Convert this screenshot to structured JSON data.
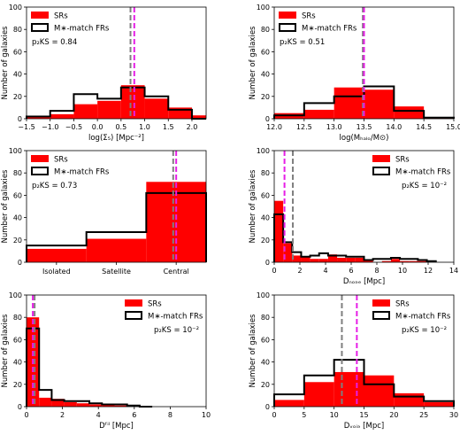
{
  "figure": {
    "legend_sr": "SRs",
    "legend_fr": "M∗-match FRs"
  },
  "colors": {
    "sr_fill": "#ff0000",
    "fr_line": "#000000",
    "median_sr": "#e61ee6",
    "median_fr": "#7f7f7f"
  },
  "chart_data": [
    {
      "type": "bar",
      "title": "",
      "xlabel": "log(Σ₅) [Mpc⁻²]",
      "ylabel": "Number of galaxies",
      "xlim": [
        -1.5,
        2.3
      ],
      "ylim": [
        0,
        100
      ],
      "xticks": [
        -1.5,
        -1.0,
        -0.5,
        0.0,
        0.5,
        1.0,
        1.5,
        2.0
      ],
      "xtick_labels": [
        "−1.5",
        "−1.0",
        "−0.5",
        "0.0",
        "0.5",
        "1.0",
        "1.5",
        "2.0"
      ],
      "yticks": [
        0,
        20,
        40,
        60,
        80,
        100
      ],
      "bin_edges": [
        -1.5,
        -1.0,
        -0.5,
        0.0,
        0.5,
        1.0,
        1.5,
        2.0,
        2.3
      ],
      "series": [
        {
          "name": "SRs",
          "style": "filled",
          "values": [
            2,
            4,
            13,
            16,
            30,
            18,
            10,
            3
          ]
        },
        {
          "name": "M∗-match FRs",
          "style": "step",
          "values": [
            2,
            7,
            22,
            18,
            28,
            20,
            8,
            0
          ]
        }
      ],
      "medians": {
        "sr": 0.78,
        "fr": 0.7
      },
      "annotation": "p₂KS = 0.84",
      "legend": "top-left",
      "annotation_position": "left"
    },
    {
      "type": "bar",
      "title": "",
      "xlabel": "log(Mₕₐₗₒ/M⊙)",
      "ylabel": "Number of galaxies",
      "xlim": [
        12.0,
        15.0
      ],
      "ylim": [
        0,
        100
      ],
      "xticks": [
        12.0,
        12.5,
        13.0,
        13.5,
        14.0,
        14.5,
        15.0
      ],
      "xtick_labels": [
        "12.0",
        "12.5",
        "13.0",
        "13.5",
        "14.0",
        "14.5",
        "15.0"
      ],
      "yticks": [
        0,
        20,
        40,
        60,
        80,
        100
      ],
      "bin_edges": [
        12.0,
        12.5,
        13.0,
        13.5,
        14.0,
        14.5,
        15.0
      ],
      "series": [
        {
          "name": "SRs",
          "style": "filled",
          "values": [
            5,
            8,
            28,
            26,
            11,
            1
          ]
        },
        {
          "name": "M∗-match FRs",
          "style": "step",
          "values": [
            3,
            14,
            20,
            29,
            7,
            1
          ]
        }
      ],
      "medians": {
        "sr": 13.5,
        "fr": 13.48
      },
      "annotation": "p₂KS = 0.51",
      "legend": "top-left",
      "annotation_position": "left"
    },
    {
      "type": "bar",
      "title": "",
      "xlabel": "",
      "ylabel": "Number of galaxies",
      "categories": [
        "Isolated",
        "Satellite",
        "Central"
      ],
      "ylim": [
        0,
        100
      ],
      "yticks": [
        0,
        20,
        40,
        60,
        80,
        100
      ],
      "series": [
        {
          "name": "SRs",
          "style": "filled",
          "values": [
            12,
            21,
            72
          ]
        },
        {
          "name": "M∗-match FRs",
          "style": "step",
          "values": [
            15,
            27,
            62
          ]
        }
      ],
      "medians": {
        "sr": 2.0,
        "fr": 1.95
      },
      "annotation": "p₂KS = 0.73",
      "legend": "top-left",
      "annotation_position": "left"
    },
    {
      "type": "bar",
      "title": "",
      "xlabel": "Dₙₒₔₑ [Mpc]",
      "ylabel": "Number of galaxies",
      "xlim": [
        0,
        14
      ],
      "ylim": [
        0,
        100
      ],
      "xticks": [
        0,
        2,
        4,
        6,
        8,
        10,
        12,
        14
      ],
      "xtick_labels": [
        "0",
        "2",
        "4",
        "6",
        "8",
        "10",
        "12",
        "14"
      ],
      "yticks": [
        0,
        20,
        40,
        60,
        80,
        100
      ],
      "bin_edges": [
        0,
        0.7,
        1.4,
        2.1,
        2.8,
        3.5,
        4.2,
        4.9,
        5.6,
        6.3,
        7.0,
        7.7,
        8.4,
        9.1,
        9.8,
        10.5,
        11.2,
        11.9,
        12.6
      ],
      "series": [
        {
          "name": "SRs",
          "style": "filled",
          "values": [
            55,
            17,
            6,
            5,
            3,
            3,
            7,
            4,
            4,
            4,
            2,
            0,
            1,
            3,
            1,
            1,
            1,
            0
          ]
        },
        {
          "name": "M∗-match FRs",
          "style": "step",
          "values": [
            43,
            18,
            9,
            5,
            6,
            8,
            6,
            6,
            5,
            5,
            2,
            3,
            3,
            4,
            3,
            3,
            2,
            1
          ]
        }
      ],
      "medians": {
        "sr": 0.8,
        "fr": 1.45
      },
      "annotation": "p₂KS = 10⁻²",
      "legend": "top-right",
      "annotation_position": "right"
    },
    {
      "type": "bar",
      "title": "",
      "xlabel": "Dᶠⁱˡ [Mpc]",
      "ylabel": "Number of galaxies",
      "xlim": [
        0,
        10
      ],
      "ylim": [
        0,
        100
      ],
      "xticks": [
        0,
        2,
        4,
        6,
        8,
        10
      ],
      "xtick_labels": [
        "0",
        "2",
        "4",
        "6",
        "8",
        "10"
      ],
      "yticks": [
        0,
        20,
        40,
        60,
        80,
        100
      ],
      "bin_edges": [
        0,
        0.7,
        1.4,
        2.1,
        2.8,
        3.5,
        4.2,
        4.9,
        5.6,
        6.3,
        7.0
      ],
      "series": [
        {
          "name": "SRs",
          "style": "filled",
          "values": [
            80,
            8,
            7,
            4,
            3,
            2,
            2,
            1,
            0,
            0
          ]
        },
        {
          "name": "M∗-match FRs",
          "style": "step",
          "values": [
            70,
            15,
            6,
            5,
            5,
            3,
            2,
            2,
            1,
            0
          ]
        }
      ],
      "medians": {
        "sr": 0.35,
        "fr": 0.45
      },
      "annotation": "p₂KS = 10⁻²",
      "legend": "top-right",
      "annotation_position": "right"
    },
    {
      "type": "bar",
      "title": "",
      "xlabel": "Dᵥₒᵢₔ [Mpc]",
      "ylabel": "Number of galaxies",
      "xlim": [
        0,
        30
      ],
      "ylim": [
        0,
        100
      ],
      "xticks": [
        0,
        5,
        10,
        15,
        20,
        25,
        30
      ],
      "xtick_labels": [
        "0",
        "5",
        "10",
        "15",
        "20",
        "25",
        "30"
      ],
      "yticks": [
        0,
        20,
        40,
        60,
        80,
        100
      ],
      "bin_edges": [
        0,
        5,
        10,
        15,
        20,
        25,
        30
      ],
      "series": [
        {
          "name": "SRs",
          "style": "filled",
          "values": [
            6,
            22,
            31,
            28,
            12,
            4
          ]
        },
        {
          "name": "M∗-match FRs",
          "style": "step",
          "values": [
            11,
            28,
            42,
            20,
            9,
            5
          ]
        }
      ],
      "medians": {
        "sr": 13.8,
        "fr": 11.3
      },
      "annotation": "p₂KS = 10⁻²",
      "legend": "top-right",
      "annotation_position": "right"
    }
  ]
}
